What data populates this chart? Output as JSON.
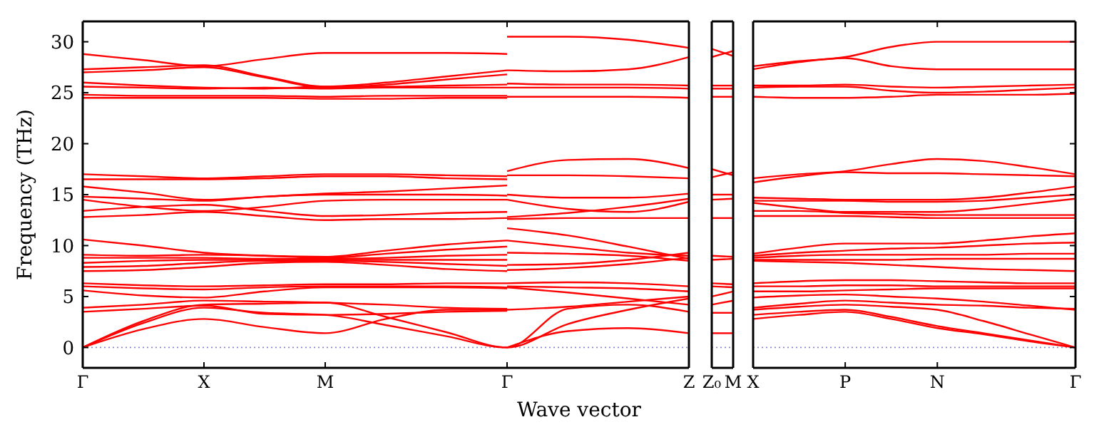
{
  "chart_data": [
    {
      "type": "line",
      "ylabel": "Frequency (THz)",
      "xlabel": "Wave vector",
      "ylim": [
        -2,
        32
      ],
      "yticks": [
        0,
        5,
        10,
        15,
        20,
        25,
        30
      ],
      "categories": [
        "Γ",
        null,
        "X",
        null,
        "M",
        null,
        null,
        "Γ",
        null,
        null,
        "Z"
      ],
      "ref_lines": [
        {
          "axis": "y",
          "value": 0,
          "color": "#8888cc",
          "line_style": "dotted"
        }
      ],
      "series": [
        {
          "color": "#ff0000",
          "values": [
            28.8,
            28.2,
            27.6,
            28.3,
            28.9,
            28.9,
            28.9,
            28.8,
            null,
            null,
            null
          ]
        },
        {
          "color": "#ff0000",
          "values": [
            27.3,
            27.5,
            27.7,
            26.6,
            25.6,
            26.0,
            26.6,
            27.2,
            null,
            null,
            null
          ]
        },
        {
          "color": "#ff0000",
          "values": [
            27.0,
            27.2,
            27.5,
            26.5,
            25.5,
            25.8,
            26.3,
            26.8,
            null,
            null,
            null
          ]
        },
        {
          "color": "#ff0000",
          "values": [
            26.0,
            25.7,
            25.5,
            25.4,
            25.6,
            25.6,
            25.7,
            25.8,
            null,
            null,
            null
          ]
        },
        {
          "color": "#ff0000",
          "values": [
            25.6,
            25.5,
            25.4,
            25.5,
            25.4,
            25.5,
            25.5,
            25.5,
            null,
            null,
            null
          ]
        },
        {
          "color": "#ff0000",
          "values": [
            24.8,
            24.7,
            24.7,
            24.7,
            24.6,
            24.7,
            24.7,
            24.7,
            null,
            null,
            null
          ]
        },
        {
          "color": "#ff0000",
          "values": [
            24.5,
            24.5,
            24.5,
            24.5,
            24.4,
            24.4,
            24.5,
            24.5,
            null,
            null,
            null
          ]
        },
        {
          "color": "#ff0000",
          "values": [
            17.0,
            16.8,
            16.6,
            16.8,
            17.0,
            17.0,
            16.9,
            16.8,
            null,
            null,
            null
          ]
        },
        {
          "color": "#ff0000",
          "values": [
            16.5,
            16.5,
            16.5,
            16.6,
            16.8,
            16.8,
            16.6,
            16.5,
            null,
            null,
            null
          ]
        },
        {
          "color": "#ff0000",
          "values": [
            15.8,
            15.2,
            14.5,
            14.8,
            15.1,
            15.3,
            15.6,
            15.9,
            null,
            null,
            null
          ]
        },
        {
          "color": "#ff0000",
          "values": [
            14.8,
            14.6,
            14.4,
            14.8,
            15.0,
            15.0,
            15.0,
            14.9,
            null,
            null,
            null
          ]
        },
        {
          "color": "#ff0000",
          "values": [
            14.5,
            13.8,
            13.4,
            13.8,
            14.4,
            14.5,
            14.5,
            14.5,
            null,
            null,
            null
          ]
        },
        {
          "color": "#ff0000",
          "values": [
            13.4,
            13.8,
            14.0,
            13.4,
            12.9,
            13.0,
            13.2,
            13.3,
            null,
            null,
            null
          ]
        },
        {
          "color": "#ff0000",
          "values": [
            12.8,
            13.0,
            13.3,
            12.9,
            12.5,
            12.6,
            12.6,
            12.7,
            null,
            null,
            null
          ]
        },
        {
          "color": "#ff0000",
          "values": [
            10.6,
            10.0,
            9.3,
            9.0,
            8.9,
            9.5,
            10.1,
            10.5,
            null,
            null,
            null
          ]
        },
        {
          "color": "#ff0000",
          "values": [
            9.1,
            9.0,
            9.1,
            9.0,
            8.8,
            9.2,
            9.6,
            9.9,
            null,
            null,
            null
          ]
        },
        {
          "color": "#ff0000",
          "values": [
            8.8,
            8.8,
            8.8,
            8.7,
            8.7,
            8.8,
            9.0,
            9.1,
            null,
            null,
            null
          ]
        },
        {
          "color": "#ff0000",
          "values": [
            8.3,
            8.5,
            8.6,
            8.6,
            8.6,
            8.6,
            8.6,
            8.6,
            null,
            null,
            null
          ]
        },
        {
          "color": "#ff0000",
          "values": [
            7.9,
            8.0,
            8.3,
            8.5,
            8.5,
            8.4,
            8.2,
            8.0,
            null,
            null,
            null
          ]
        },
        {
          "color": "#ff0000",
          "values": [
            7.5,
            7.6,
            7.9,
            8.3,
            8.4,
            8.1,
            7.7,
            7.5,
            null,
            null,
            null
          ]
        },
        {
          "color": "#ff0000",
          "values": [
            6.3,
            6.1,
            6.0,
            6.1,
            6.2,
            6.2,
            6.3,
            6.3,
            null,
            null,
            null
          ]
        },
        {
          "color": "#ff0000",
          "values": [
            6.0,
            5.8,
            5.7,
            5.9,
            6.0,
            6.0,
            6.0,
            5.9,
            null,
            null,
            null
          ]
        },
        {
          "color": "#ff0000",
          "values": [
            5.6,
            5.1,
            4.9,
            5.5,
            5.9,
            5.9,
            5.9,
            5.8,
            null,
            null,
            null
          ]
        },
        {
          "color": "#ff0000",
          "values": [
            3.9,
            4.2,
            4.6,
            4.5,
            4.4,
            4.2,
            3.9,
            3.8,
            null,
            null,
            null
          ]
        },
        {
          "color": "#ff0000",
          "values": [
            3.5,
            3.8,
            4.1,
            3.3,
            3.2,
            3.3,
            3.5,
            3.6,
            null,
            null,
            null
          ]
        },
        {
          "color": "#ff0000",
          "values": [
            0,
            1.8,
            2.8,
            2.0,
            1.4,
            2.8,
            3.7,
            3.7,
            null,
            null,
            null
          ]
        },
        {
          "color": "#ff0000",
          "values": [
            0,
            2.4,
            3.9,
            3.4,
            3.2,
            2.2,
            1.1,
            0,
            2.3,
            3.7,
            4.8
          ]
        },
        {
          "color": "#ff0000",
          "values": [
            0,
            2.6,
            4.2,
            4.3,
            4.4,
            3.0,
            1.5,
            0,
            3.8,
            4.2,
            3.5
          ]
        },
        {
          "color": "#ff0000",
          "values": [
            null,
            null,
            null,
            null,
            null,
            null,
            null,
            30.5,
            30.5,
            30.2,
            29.4
          ]
        },
        {
          "color": "#ff0000",
          "values": [
            null,
            null,
            null,
            null,
            null,
            null,
            null,
            27.2,
            27.1,
            27.3,
            28.5
          ]
        },
        {
          "color": "#ff0000",
          "values": [
            null,
            null,
            null,
            null,
            null,
            null,
            null,
            25.9,
            25.8,
            25.8,
            25.7
          ]
        },
        {
          "color": "#ff0000",
          "values": [
            null,
            null,
            null,
            null,
            null,
            null,
            null,
            25.5,
            25.5,
            25.5,
            25.4
          ]
        },
        {
          "color": "#ff0000",
          "values": [
            null,
            null,
            null,
            null,
            null,
            null,
            null,
            24.6,
            24.6,
            24.6,
            24.5
          ]
        },
        {
          "color": "#ff0000",
          "values": [
            null,
            null,
            null,
            null,
            null,
            null,
            null,
            17.3,
            18.4,
            18.5,
            17.6
          ]
        },
        {
          "color": "#ff0000",
          "values": [
            null,
            null,
            null,
            null,
            null,
            null,
            null,
            16.9,
            16.9,
            16.8,
            16.6
          ]
        },
        {
          "color": "#ff0000",
          "values": [
            null,
            null,
            null,
            null,
            null,
            null,
            null,
            15.0,
            14.7,
            14.7,
            15.1
          ]
        },
        {
          "color": "#ff0000",
          "values": [
            null,
            null,
            null,
            null,
            null,
            null,
            null,
            14.5,
            13.6,
            13.3,
            14.3
          ]
        },
        {
          "color": "#ff0000",
          "values": [
            null,
            null,
            null,
            null,
            null,
            null,
            null,
            12.8,
            13.2,
            13.8,
            14.6
          ]
        },
        {
          "color": "#ff0000",
          "values": [
            null,
            null,
            null,
            null,
            null,
            null,
            null,
            12.6,
            12.7,
            12.7,
            12.7
          ]
        },
        {
          "color": "#ff0000",
          "values": [
            null,
            null,
            null,
            null,
            null,
            null,
            null,
            11.7,
            11.0,
            9.9,
            8.7
          ]
        },
        {
          "color": "#ff0000",
          "values": [
            null,
            null,
            null,
            null,
            null,
            null,
            null,
            10.5,
            9.9,
            9.3,
            9.0
          ]
        },
        {
          "color": "#ff0000",
          "values": [
            null,
            null,
            null,
            null,
            null,
            null,
            null,
            9.3,
            9.2,
            9.0,
            8.5
          ]
        },
        {
          "color": "#ff0000",
          "values": [
            null,
            null,
            null,
            null,
            null,
            null,
            null,
            8.1,
            8.2,
            8.6,
            9.3
          ]
        },
        {
          "color": "#ff0000",
          "values": [
            null,
            null,
            null,
            null,
            null,
            null,
            null,
            7.6,
            7.8,
            8.2,
            8.8
          ]
        },
        {
          "color": "#ff0000",
          "values": [
            null,
            null,
            null,
            null,
            null,
            null,
            null,
            6.3,
            6.4,
            6.3,
            6.0
          ]
        },
        {
          "color": "#ff0000",
          "values": [
            null,
            null,
            null,
            null,
            null,
            null,
            null,
            6.0,
            5.9,
            5.8,
            5.5
          ]
        },
        {
          "color": "#ff0000",
          "values": [
            null,
            null,
            null,
            null,
            null,
            null,
            null,
            5.9,
            5.4,
            4.8,
            4.2
          ]
        },
        {
          "color": "#ff0000",
          "values": [
            null,
            null,
            null,
            null,
            null,
            null,
            null,
            3.7,
            4.0,
            4.5,
            5.0
          ]
        },
        {
          "color": "#ff0000",
          "values": [
            null,
            null,
            null,
            null,
            null,
            null,
            null,
            0,
            1.6,
            1.9,
            1.4
          ]
        }
      ]
    },
    {
      "type": "line",
      "tick_labels": "x",
      "ylim": [
        -2,
        32
      ],
      "yticks": [
        0,
        5,
        10,
        15,
        20,
        25,
        30
      ],
      "categories": [
        "Z₀",
        "M"
      ],
      "ref_lines": [
        {
          "axis": "y",
          "value": 0,
          "color": "#8888cc",
          "line_style": "dotted"
        }
      ],
      "series": [
        {
          "color": "#ff0000",
          "values": [
            29.3,
            28.6
          ]
        },
        {
          "color": "#ff0000",
          "values": [
            28.5,
            29.1
          ]
        },
        {
          "color": "#ff0000",
          "values": [
            25.7,
            25.7
          ]
        },
        {
          "color": "#ff0000",
          "values": [
            25.4,
            25.4
          ]
        },
        {
          "color": "#ff0000",
          "values": [
            24.6,
            24.6
          ]
        },
        {
          "color": "#ff0000",
          "values": [
            17.5,
            16.9
          ]
        },
        {
          "color": "#ff0000",
          "values": [
            16.7,
            17.2
          ]
        },
        {
          "color": "#ff0000",
          "values": [
            15.0,
            15.0
          ]
        },
        {
          "color": "#ff0000",
          "values": [
            14.5,
            14.6
          ]
        },
        {
          "color": "#ff0000",
          "values": [
            12.7,
            12.7
          ]
        },
        {
          "color": "#ff0000",
          "values": [
            9.0,
            8.9
          ]
        },
        {
          "color": "#ff0000",
          "values": [
            8.6,
            8.7
          ]
        },
        {
          "color": "#ff0000",
          "values": [
            6.3,
            6.2
          ]
        },
        {
          "color": "#ff0000",
          "values": [
            6.0,
            5.9
          ]
        },
        {
          "color": "#ff0000",
          "values": [
            5.0,
            5.5
          ]
        },
        {
          "color": "#ff0000",
          "values": [
            4.2,
            4.6
          ]
        },
        {
          "color": "#ff0000",
          "values": [
            3.4,
            3.4
          ]
        },
        {
          "color": "#ff0000",
          "values": [
            1.4,
            1.4
          ]
        }
      ]
    },
    {
      "type": "line",
      "tick_labels": "x",
      "ylim": [
        -2,
        32
      ],
      "yticks": [
        0,
        5,
        10,
        15,
        20,
        25,
        30
      ],
      "categories": [
        "X",
        null,
        "P",
        null,
        "N",
        null,
        null,
        "Γ"
      ],
      "ref_lines": [
        {
          "axis": "y",
          "value": 0,
          "color": "#8888cc",
          "line_style": "dotted"
        }
      ],
      "series": [
        {
          "color": "#ff0000",
          "values": [
            27.6,
            28.1,
            28.5,
            29.5,
            30.0,
            30.0,
            30.0,
            30.0
          ]
        },
        {
          "color": "#ff0000",
          "values": [
            27.3,
            28.0,
            28.4,
            27.6,
            27.3,
            27.3,
            27.3,
            27.3
          ]
        },
        {
          "color": "#ff0000",
          "values": [
            25.7,
            25.7,
            25.8,
            25.6,
            25.5,
            25.6,
            25.7,
            25.8
          ]
        },
        {
          "color": "#ff0000",
          "values": [
            25.5,
            25.6,
            25.6,
            25.2,
            25.0,
            25.1,
            25.3,
            25.5
          ]
        },
        {
          "color": "#ff0000",
          "values": [
            24.6,
            24.5,
            24.5,
            24.6,
            24.8,
            24.8,
            24.8,
            24.9
          ]
        },
        {
          "color": "#ff0000",
          "values": [
            16.6,
            17.0,
            17.3,
            18.0,
            18.5,
            18.3,
            17.7,
            17.0
          ]
        },
        {
          "color": "#ff0000",
          "values": [
            16.2,
            16.8,
            17.2,
            17.1,
            17.1,
            17.0,
            16.9,
            16.8
          ]
        },
        {
          "color": "#ff0000",
          "values": [
            14.7,
            14.6,
            14.5,
            14.5,
            14.5,
            14.7,
            15.2,
            15.8
          ]
        },
        {
          "color": "#ff0000",
          "values": [
            14.4,
            14.4,
            14.4,
            14.3,
            14.3,
            14.4,
            14.7,
            15.0
          ]
        },
        {
          "color": "#ff0000",
          "values": [
            14.2,
            13.7,
            13.3,
            13.3,
            13.3,
            13.6,
            14.1,
            14.6
          ]
        },
        {
          "color": "#ff0000",
          "values": [
            13.4,
            13.4,
            13.2,
            13.1,
            13.0,
            13.0,
            13.0,
            13.0
          ]
        },
        {
          "color": "#ff0000",
          "values": [
            12.9,
            12.9,
            12.9,
            12.8,
            12.7,
            12.7,
            12.7,
            12.7
          ]
        },
        {
          "color": "#ff0000",
          "values": [
            9.2,
            9.8,
            10.2,
            10.2,
            10.2,
            10.5,
            10.9,
            11.2
          ]
        },
        {
          "color": "#ff0000",
          "values": [
            9.0,
            9.3,
            9.5,
            9.7,
            9.8,
            10.0,
            10.2,
            10.3
          ]
        },
        {
          "color": "#ff0000",
          "values": [
            8.8,
            9.0,
            9.1,
            9.1,
            9.1,
            9.1,
            9.2,
            9.2
          ]
        },
        {
          "color": "#ff0000",
          "values": [
            8.6,
            8.6,
            8.6,
            8.6,
            8.7,
            8.7,
            8.7,
            8.7
          ]
        },
        {
          "color": "#ff0000",
          "values": [
            8.5,
            8.4,
            8.3,
            8.1,
            7.9,
            7.7,
            7.6,
            7.5
          ]
        },
        {
          "color": "#ff0000",
          "values": [
            6.3,
            6.5,
            6.6,
            6.6,
            6.5,
            6.4,
            6.3,
            6.3
          ]
        },
        {
          "color": "#ff0000",
          "values": [
            6.0,
            6.0,
            6.1,
            6.1,
            6.0,
            6.0,
            6.0,
            6.0
          ]
        },
        {
          "color": "#ff0000",
          "values": [
            5.5,
            5.5,
            5.6,
            5.7,
            5.8,
            5.8,
            5.8,
            5.8
          ]
        },
        {
          "color": "#ff0000",
          "values": [
            4.9,
            5.1,
            5.2,
            5.0,
            4.8,
            4.5,
            4.1,
            3.7
          ]
        },
        {
          "color": "#ff0000",
          "values": [
            3.9,
            4.3,
            4.6,
            4.4,
            4.2,
            4.1,
            3.9,
            3.8
          ]
        },
        {
          "color": "#ff0000",
          "values": [
            3.7,
            4.0,
            4.2,
            4.0,
            3.7,
            2.6,
            1.3,
            0
          ]
        },
        {
          "color": "#ff0000",
          "values": [
            3.2,
            3.5,
            3.7,
            3.0,
            2.1,
            1.4,
            0.7,
            0
          ]
        },
        {
          "color": "#ff0000",
          "values": [
            2.8,
            3.2,
            3.5,
            2.8,
            1.9,
            1.3,
            0.6,
            0
          ]
        }
      ]
    }
  ]
}
